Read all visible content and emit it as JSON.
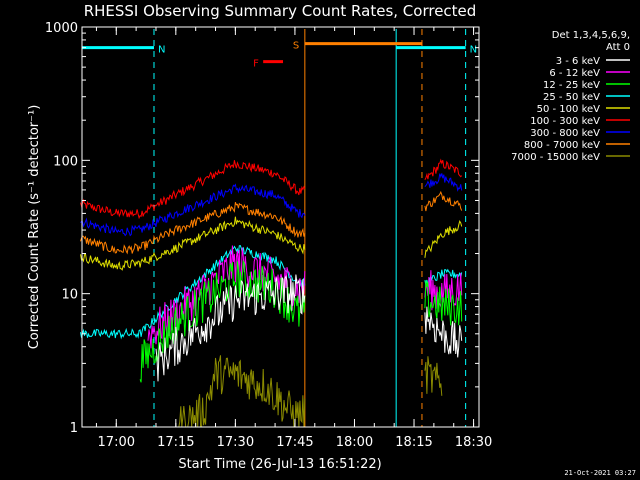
{
  "chart_data": {
    "type": "line",
    "title": "RHESSI Observing Summary Count Rates, Corrected",
    "ylabel": "Corrected Count Rate (s⁻¹ detector⁻¹)",
    "xlabel": "Start Time (26-Jul-13 16:51:22)",
    "footer": "21-Oct-2021 03:27",
    "y_scale": "log",
    "ylim": [
      1,
      1000
    ],
    "y_ticks": [
      {
        "v": 1,
        "label": "1"
      },
      {
        "v": 10,
        "label": "10"
      },
      {
        "v": 100,
        "label": "100"
      },
      {
        "v": 1000,
        "label": "1000"
      }
    ],
    "xlim": [
      "16:51:22",
      "18:31:22"
    ],
    "x_ticks": [
      "17:00",
      "17:15",
      "17:30",
      "17:45",
      "18:00",
      "18:15",
      "18:30"
    ],
    "legend_header": [
      "Det 1,3,4,5,6,9,",
      "Att 0"
    ],
    "legend_position": "right",
    "series": [
      {
        "name": "3 - 6 keV",
        "color": "#ffffff"
      },
      {
        "name": "6 - 12 keV",
        "color": "#ff00ff"
      },
      {
        "name": "12 - 25 keV",
        "color": "#00ff00"
      },
      {
        "name": "25 - 50 keV",
        "color": "#00ffff"
      },
      {
        "name": "50 - 100 keV",
        "color": "#dddd00"
      },
      {
        "name": "100 - 300 keV",
        "color": "#ff0000"
      },
      {
        "name": "300 - 800 keV",
        "color": "#0000ff"
      },
      {
        "name": "800 - 7000 keV",
        "color": "#ff8000"
      },
      {
        "name": "7000 - 15000 keV",
        "color": "#8b8b00"
      }
    ],
    "annotations": [
      {
        "label": "N",
        "type": "night",
        "color": "#00ffff",
        "y": 700,
        "spans": [
          [
            "16:51:22",
            "17:09:30"
          ],
          [
            "18:10:30",
            "18:28:00"
          ]
        ]
      },
      {
        "label": "S",
        "type": "SAA",
        "color": "#ff8000",
        "y": 750,
        "spans": [
          [
            "17:47:30",
            "18:17:00"
          ]
        ]
      },
      {
        "label": "F",
        "type": "flare",
        "color": "#ff0000",
        "y": 550,
        "spans": [
          [
            "17:37:00",
            "17:42:00"
          ]
        ]
      }
    ],
    "gaps": [
      [
        "17:47:30",
        "18:17:40"
      ]
    ],
    "profiles": [
      {
        "series": "100 - 300 keV",
        "t": [
          "16:51",
          "17:00",
          "17:06",
          "17:15",
          "17:30",
          "17:40",
          "17:46",
          "18:18",
          "18:22",
          "18:27"
        ],
        "v": [
          47,
          40,
          40,
          55,
          95,
          80,
          58,
          72,
          95,
          80
        ]
      },
      {
        "series": "300 - 800 keV",
        "t": [
          "16:51",
          "17:00",
          "17:06",
          "17:15",
          "17:30",
          "17:40",
          "17:46",
          "18:18",
          "18:22",
          "18:27"
        ],
        "v": [
          35,
          29,
          30,
          40,
          62,
          55,
          40,
          65,
          75,
          62
        ]
      },
      {
        "series": "800 - 7000 keV",
        "t": [
          "16:51",
          "17:00",
          "17:06",
          "17:15",
          "17:30",
          "17:40",
          "17:46",
          "18:18",
          "18:22",
          "18:27"
        ],
        "v": [
          26,
          21,
          22,
          30,
          45,
          38,
          28,
          45,
          55,
          45
        ]
      },
      {
        "series": "50 - 100 keV",
        "t": [
          "16:51",
          "17:00",
          "17:06",
          "17:15",
          "17:30",
          "17:40",
          "17:46",
          "18:18",
          "18:22",
          "18:27"
        ],
        "v": [
          19,
          16,
          17,
          22,
          35,
          28,
          22,
          20,
          28,
          33
        ]
      },
      {
        "series": "25 - 50 keV",
        "t": [
          "16:51",
          "17:00",
          "17:06",
          "17:15",
          "17:30",
          "17:40",
          "17:46",
          "18:18",
          "18:22",
          "18:27"
        ],
        "v": [
          5,
          5,
          5,
          9,
          22,
          18,
          12,
          12,
          14,
          14
        ]
      },
      {
        "series": "6 - 12 keV",
        "t": [
          "17:08",
          "17:15",
          "17:30",
          "17:40",
          "17:46",
          "18:18",
          "18:22",
          "18:27"
        ],
        "v": [
          5,
          7,
          17,
          13,
          11,
          11,
          10,
          11
        ]
      },
      {
        "series": "12 - 25 keV",
        "t": [
          "17:06",
          "17:15",
          "17:30",
          "17:40",
          "17:46",
          "18:18",
          "18:22",
          "18:27"
        ],
        "v": [
          3,
          6,
          13,
          11,
          7,
          9,
          8,
          8
        ]
      },
      {
        "series": "3 - 6 keV",
        "t": [
          "17:10",
          "17:15",
          "17:30",
          "17:40",
          "17:46",
          "18:18",
          "18:22",
          "18:27"
        ],
        "v": [
          3,
          4,
          9,
          10,
          10,
          7,
          5,
          4
        ]
      },
      {
        "series": "7000 - 15000 keV",
        "t": [
          "17:15",
          "17:22",
          "17:25",
          "17:30",
          "17:38",
          "17:45",
          "18:18",
          "18:22"
        ],
        "v": [
          1,
          1.3,
          2.5,
          2.5,
          2,
          1.2,
          2.5,
          2
        ]
      }
    ]
  }
}
